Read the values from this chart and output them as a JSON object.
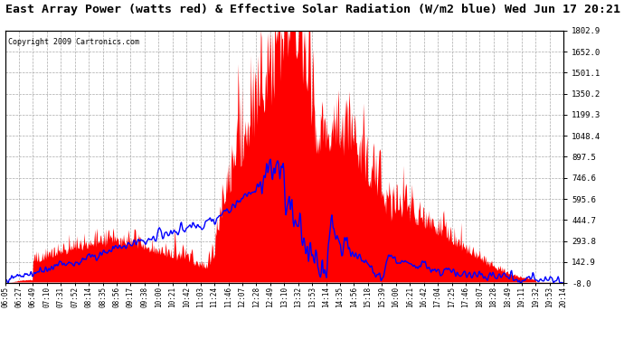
{
  "title": "East Array Power (watts red) & Effective Solar Radiation (W/m2 blue) Wed Jun 17 20:21",
  "copyright": "Copyright 2009 Cartronics.com",
  "ylim": [
    -8.0,
    1802.9
  ],
  "yticks": [
    -8.0,
    142.9,
    293.8,
    444.7,
    595.6,
    746.6,
    897.5,
    1048.4,
    1199.3,
    1350.2,
    1501.1,
    1652.0,
    1802.9
  ],
  "xtick_labels": [
    "06:05",
    "06:27",
    "06:49",
    "07:10",
    "07:31",
    "07:52",
    "08:14",
    "08:35",
    "08:56",
    "09:17",
    "09:38",
    "10:00",
    "10:21",
    "10:42",
    "11:03",
    "11:24",
    "11:46",
    "12:07",
    "12:28",
    "12:49",
    "13:10",
    "13:32",
    "13:53",
    "14:14",
    "14:35",
    "14:56",
    "15:18",
    "15:39",
    "16:00",
    "16:21",
    "16:42",
    "17:04",
    "17:25",
    "17:46",
    "18:07",
    "18:28",
    "18:49",
    "19:11",
    "19:32",
    "19:53",
    "20:14"
  ],
  "bg_color": "#ffffff",
  "red_color": "#ff0000",
  "blue_color": "#0000ff",
  "grid_color": "#aaaaaa",
  "border_color": "#000000",
  "title_fontsize": 9.5,
  "copyright_fontsize": 6,
  "tick_fontsize": 5.5,
  "ytick_fontsize": 6.5
}
